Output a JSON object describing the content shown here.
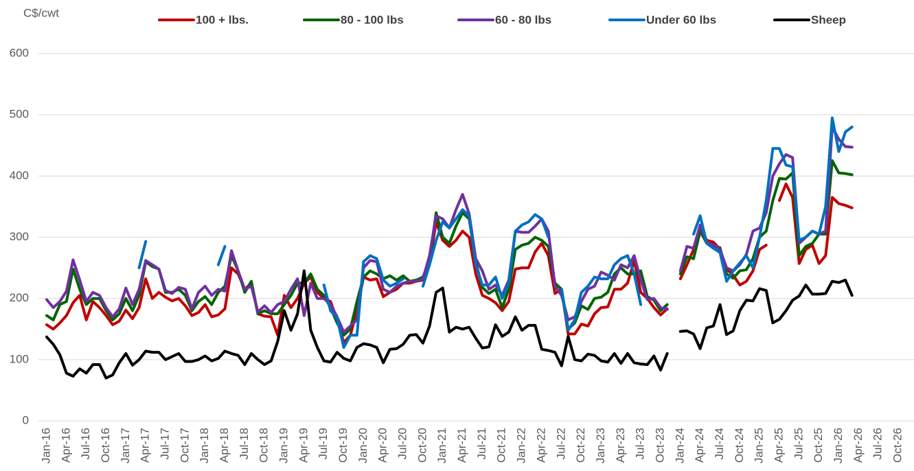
{
  "chart_data": {
    "type": "line",
    "y_label": "C$/cwt",
    "categories": [
      "Jan-16",
      null,
      null,
      "Apr-16",
      null,
      null,
      "Jul-16",
      null,
      null,
      "Oct-16",
      null,
      null,
      "Jan-17",
      null,
      null,
      "Apr-17",
      null,
      null,
      "Jul-17",
      null,
      null,
      "Oct-17",
      null,
      null,
      "Jan-18",
      null,
      null,
      "Apr-18",
      null,
      null,
      "Jul-18",
      null,
      null,
      "Oct-18",
      null,
      null,
      "Jan-19",
      null,
      null,
      "Apr-19",
      null,
      null,
      "Jul-19",
      null,
      null,
      "Oct-19",
      null,
      null,
      "Jan-20",
      null,
      null,
      "Apr-20",
      null,
      null,
      "Jul-20",
      null,
      null,
      "Oct-20",
      null,
      null,
      "Jan-21",
      null,
      null,
      "Apr-21",
      null,
      null,
      "Jul-21",
      null,
      null,
      "Oct-21",
      null,
      null,
      "Jan-22",
      null,
      null,
      "Apr-22",
      null,
      null,
      "Jul-22",
      null,
      null,
      "Oct-22",
      null,
      null,
      "Jan-23",
      null,
      null,
      "Apr-23",
      null,
      null,
      "Jul-23",
      null,
      null,
      "Oct-23",
      null,
      null,
      "Jan-24",
      null,
      null,
      "Apr-24",
      null,
      null,
      "Jul-24",
      null,
      null,
      "Oct-24",
      null,
      null,
      "Jan-25",
      null,
      null,
      "Apr-25",
      null,
      null,
      "Jul-25",
      null,
      null,
      "Oct-25",
      null,
      null,
      "Jan-26",
      null,
      null,
      "Apr-26",
      null,
      null,
      "Jul-26",
      null,
      null,
      "Oct-26"
    ],
    "series": [
      {
        "name": "100 + lbs.",
        "color": "#c00000",
        "values": [
          157,
          150,
          160,
          172,
          193,
          205,
          165,
          195,
          185,
          172,
          157,
          163,
          181,
          167,
          185,
          232,
          200,
          210,
          202,
          196,
          200,
          188,
          172,
          177,
          190,
          170,
          173,
          183,
          250,
          240,
          215,
          225,
          175,
          171,
          170,
          140,
          205,
          185,
          200,
          225,
          235,
          210,
          200,
          195,
          165,
          128,
          140,
          180,
          235,
          230,
          232,
          203,
          210,
          215,
          225,
          225,
          228,
          230,
          258,
          325,
          295,
          285,
          295,
          310,
          300,
          240,
          205,
          200,
          193,
          180,
          195,
          248,
          250,
          250,
          276,
          290,
          270,
          208,
          215,
          142,
          142,
          158,
          155,
          175,
          185,
          186,
          215,
          215,
          225,
          262,
          210,
          200,
          185,
          173,
          183,
          null,
          232,
          255,
          280,
          315,
          295,
          292,
          280,
          248,
          238,
          222,
          228,
          245,
          280,
          287,
          null,
          360,
          387,
          365,
          257,
          280,
          287,
          257,
          270,
          365,
          355,
          352,
          348,
          null,
          null,
          null,
          null,
          null,
          null,
          null
        ]
      },
      {
        "name": "80 - 100 lbs",
        "color": "#006400",
        "values": [
          172,
          165,
          190,
          195,
          248,
          215,
          190,
          200,
          200,
          180,
          165,
          175,
          200,
          180,
          205,
          260,
          252,
          248,
          210,
          210,
          215,
          205,
          180,
          195,
          203,
          190,
          210,
          220,
          270,
          245,
          210,
          228,
          175,
          180,
          175,
          175,
          190,
          205,
          225,
          225,
          240,
          215,
          205,
          185,
          160,
          140,
          150,
          195,
          235,
          245,
          240,
          232,
          237,
          230,
          237,
          228,
          230,
          235,
          262,
          340,
          300,
          290,
          318,
          340,
          330,
          260,
          218,
          208,
          215,
          185,
          215,
          280,
          287,
          290,
          300,
          295,
          285,
          225,
          215,
          150,
          160,
          188,
          182,
          200,
          202,
          210,
          240,
          250,
          240,
          240,
          245,
          203,
          197,
          180,
          190,
          null,
          240,
          268,
          265,
          310,
          290,
          285,
          283,
          240,
          233,
          245,
          247,
          265,
          300,
          310,
          360,
          396,
          395,
          405,
          270,
          285,
          290,
          305,
          305,
          425,
          405,
          404,
          402,
          null,
          null,
          null,
          null,
          null,
          null,
          null
        ]
      },
      {
        "name": "60 - 80 lbs",
        "color": "#7030a0",
        "values": [
          198,
          185,
          195,
          212,
          263,
          230,
          195,
          210,
          205,
          185,
          170,
          183,
          217,
          190,
          215,
          262,
          255,
          248,
          213,
          208,
          218,
          215,
          183,
          210,
          220,
          205,
          215,
          212,
          278,
          245,
          215,
          220,
          178,
          188,
          177,
          190,
          195,
          215,
          232,
          172,
          225,
          200,
          200,
          190,
          170,
          145,
          155,
          165,
          250,
          262,
          260,
          215,
          210,
          220,
          225,
          228,
          228,
          232,
          270,
          335,
          330,
          315,
          345,
          370,
          338,
          265,
          245,
          215,
          222,
          205,
          230,
          310,
          308,
          308,
          318,
          330,
          310,
          220,
          205,
          165,
          170,
          195,
          215,
          220,
          243,
          238,
          230,
          255,
          250,
          270,
          230,
          198,
          200,
          185,
          182,
          null,
          245,
          285,
          282,
          320,
          290,
          288,
          280,
          250,
          245,
          255,
          272,
          310,
          315,
          340,
          400,
          420,
          435,
          430,
          290,
          300,
          310,
          305,
          310,
          480,
          460,
          448,
          447,
          null,
          null,
          null,
          null,
          null,
          null,
          null
        ]
      },
      {
        "name": "Under 60 lbs",
        "color": "#0070c0",
        "values": [
          null,
          null,
          null,
          null,
          null,
          null,
          null,
          null,
          null,
          null,
          null,
          null,
          null,
          null,
          250,
          293,
          null,
          null,
          null,
          null,
          null,
          null,
          null,
          null,
          null,
          null,
          255,
          285,
          null,
          null,
          null,
          null,
          null,
          null,
          null,
          null,
          null,
          null,
          null,
          null,
          null,
          null,
          222,
          180,
          168,
          120,
          140,
          140,
          260,
          270,
          265,
          230,
          220,
          225,
          232,
          null,
          null,
          220,
          255,
          295,
          325,
          315,
          330,
          345,
          335,
          255,
          222,
          222,
          235,
          200,
          225,
          310,
          320,
          325,
          337,
          330,
          300,
          null,
          215,
          148,
          165,
          210,
          220,
          235,
          232,
          232,
          255,
          265,
          270,
          240,
          190,
          null,
          null,
          null,
          null,
          null,
          null,
          null,
          305,
          335,
          290,
          282,
          275,
          228,
          245,
          258,
          270,
          250,
          300,
          360,
          445,
          445,
          418,
          415,
          295,
          300,
          310,
          305,
          350,
          495,
          440,
          472,
          480,
          null,
          null,
          null,
          null,
          null,
          null,
          null
        ]
      },
      {
        "name": "Sheep",
        "color": "#000000",
        "values": [
          137,
          125,
          108,
          78,
          73,
          85,
          78,
          92,
          92,
          70,
          75,
          95,
          110,
          91,
          100,
          114,
          112,
          112,
          100,
          105,
          110,
          97,
          97,
          100,
          106,
          98,
          102,
          114,
          110,
          107,
          92,
          110,
          100,
          92,
          98,
          130,
          180,
          148,
          175,
          245,
          148,
          120,
          98,
          96,
          112,
          102,
          98,
          120,
          126,
          124,
          120,
          95,
          117,
          118,
          125,
          140,
          141,
          127,
          155,
          210,
          217,
          145,
          153,
          150,
          153,
          135,
          119,
          121,
          157,
          138,
          145,
          170,
          148,
          156,
          156,
          117,
          115,
          112,
          90,
          138,
          100,
          98,
          109,
          107,
          98,
          96,
          110,
          94,
          110,
          95,
          93,
          92,
          106,
          83,
          110,
          null,
          146,
          147,
          142,
          118,
          152,
          155,
          190,
          141,
          147,
          180,
          197,
          196,
          216,
          213,
          160,
          166,
          180,
          197,
          204,
          222,
          207,
          207,
          208,
          228,
          226,
          230,
          205,
          null,
          null,
          null,
          null,
          null,
          null,
          null
        ]
      }
    ],
    "ylim": [
      0,
      600
    ],
    "yticks": [
      0,
      100,
      200,
      300,
      400,
      500,
      600
    ],
    "grid": true,
    "legend": "top"
  }
}
